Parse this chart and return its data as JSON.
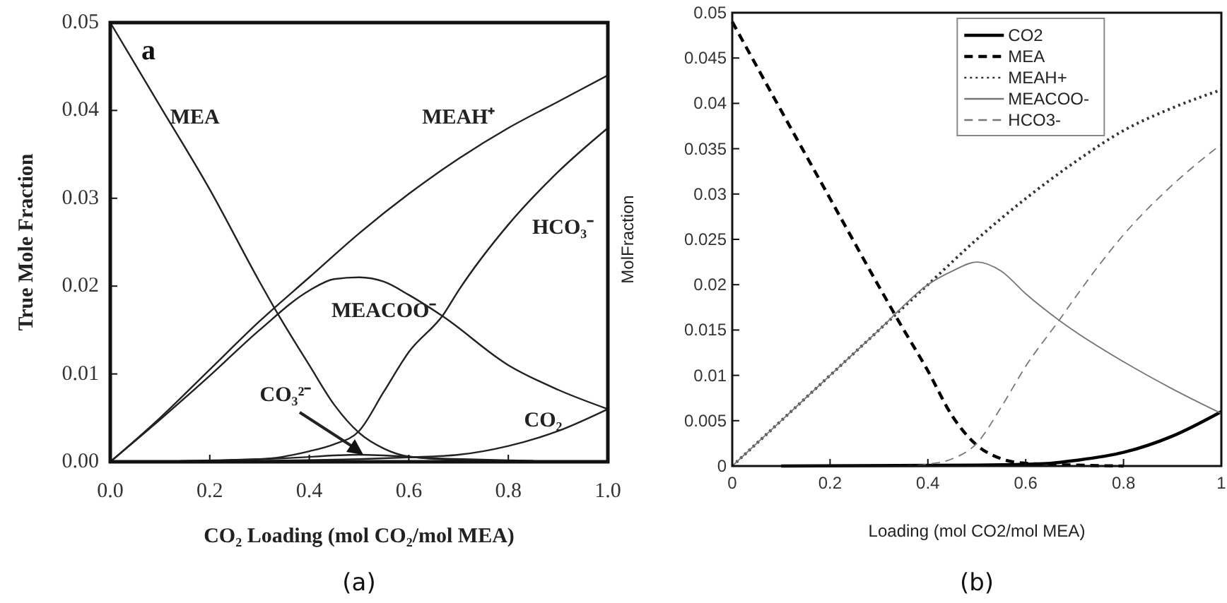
{
  "chart_data": [
    {
      "type": "line",
      "xlabel": "CO₂ Loading (mol CO₂/mol MEA)",
      "ylabel": "True Mole Fraction",
      "xlim": [
        0,
        1
      ],
      "ylim": [
        0,
        0.05
      ],
      "xticks": [
        {
          "value": 0,
          "label": "0.0"
        },
        0.2,
        0.4,
        0.6,
        0.8,
        {
          "value": 1,
          "label": "1.0"
        }
      ],
      "yticks": [
        {
          "value": 0,
          "label": "0.00"
        },
        0.01,
        0.02,
        0.03,
        0.04,
        0.05
      ],
      "series": [
        {
          "name": "MEA",
          "color": "#222222",
          "x": [
            0,
            0.1,
            0.2,
            0.3,
            0.33,
            0.4,
            0.45,
            0.5,
            0.55,
            0.6,
            0.7,
            0.8,
            1.0
          ],
          "values": [
            0.05,
            0.0405,
            0.031,
            0.0205,
            0.0175,
            0.011,
            0.0065,
            0.0033,
            0.0015,
            0.0006,
            0.0002,
            0.0001,
            0
          ]
        },
        {
          "name": "MEAH⁺",
          "color": "#222222",
          "x": [
            0,
            0.1,
            0.2,
            0.3,
            0.4,
            0.5,
            0.6,
            0.7,
            0.8,
            0.9,
            1.0
          ],
          "values": [
            0,
            0.005,
            0.0105,
            0.016,
            0.021,
            0.026,
            0.0305,
            0.0345,
            0.038,
            0.041,
            0.044
          ]
        },
        {
          "name": "MEACOO⁻",
          "color": "#222222",
          "x": [
            0,
            0.1,
            0.2,
            0.3,
            0.4,
            0.45,
            0.5,
            0.55,
            0.6,
            0.67,
            0.8,
            0.9,
            1.0
          ],
          "values": [
            0,
            0.0048,
            0.0098,
            0.015,
            0.0195,
            0.0208,
            0.021,
            0.0205,
            0.019,
            0.0165,
            0.011,
            0.0082,
            0.006
          ]
        },
        {
          "name": "HCO₃⁻",
          "color": "#222222",
          "x": [
            0,
            0.3,
            0.4,
            0.45,
            0.5,
            0.55,
            0.6,
            0.67,
            0.7,
            0.8,
            0.9,
            1.0
          ],
          "values": [
            0,
            0.0003,
            0.0012,
            0.002,
            0.0035,
            0.008,
            0.0125,
            0.0168,
            0.0195,
            0.027,
            0.033,
            0.038
          ]
        },
        {
          "name": "CO₂",
          "color": "#222222",
          "x": [
            0.1,
            0.5,
            0.6,
            0.7,
            0.8,
            0.9,
            1.0
          ],
          "values": [
            0,
            0.0003,
            0.0005,
            0.0008,
            0.0018,
            0.0035,
            0.006
          ]
        },
        {
          "name": "CO₃²⁻",
          "color": "#222222",
          "x": [
            0.2,
            0.35,
            0.5,
            0.65,
            0.85
          ],
          "values": [
            0.0001,
            0.0004,
            0.0008,
            0.0004,
            0.0001
          ]
        }
      ],
      "annotations": [
        "a",
        "(a)"
      ],
      "grid": false,
      "legend": false
    },
    {
      "type": "line",
      "xlabel": "Loading (mol CO2/mol MEA)",
      "ylabel": "MolFraction",
      "xlim": [
        0,
        1
      ],
      "ylim": [
        0,
        0.05
      ],
      "xticks": [
        0,
        0.2,
        0.4,
        0.6,
        0.8,
        1
      ],
      "yticks": [
        0,
        0.005,
        0.01,
        0.015,
        0.02,
        0.025,
        0.03,
        0.035,
        0.04,
        0.045,
        0.05
      ],
      "series": [
        {
          "name": "CO2",
          "color": "#000000",
          "line_style": "solid",
          "x": [
            0.1,
            0.5,
            0.6,
            0.65,
            0.7,
            0.8,
            0.9,
            1.0
          ],
          "values": [
            0,
            0.0001,
            0.0002,
            0.0003,
            0.0006,
            0.0015,
            0.0033,
            0.006
          ]
        },
        {
          "name": "MEA",
          "color": "#000000",
          "line_style": "dashed",
          "x": [
            0,
            0.1,
            0.2,
            0.3,
            0.34,
            0.4,
            0.45,
            0.5,
            0.55,
            0.6,
            0.7,
            0.8
          ],
          "values": [
            0.049,
            0.0392,
            0.0295,
            0.0198,
            0.016,
            0.0105,
            0.0055,
            0.0023,
            0.0008,
            0.0003,
            0.0001,
            0
          ]
        },
        {
          "name": "MEAH+",
          "color": "#333333",
          "line_style": "dotted",
          "x": [
            0,
            0.1,
            0.2,
            0.3,
            0.4,
            0.5,
            0.6,
            0.7,
            0.8,
            0.9,
            1.0
          ],
          "values": [
            0,
            0.005,
            0.01,
            0.015,
            0.02,
            0.025,
            0.0295,
            0.0335,
            0.037,
            0.0395,
            0.0415
          ]
        },
        {
          "name": "MEACOO-",
          "color": "#777777",
          "line_style": "solid",
          "x": [
            0,
            0.1,
            0.2,
            0.3,
            0.4,
            0.45,
            0.5,
            0.55,
            0.6,
            0.67,
            0.8,
            0.9,
            1.0
          ],
          "values": [
            0,
            0.005,
            0.01,
            0.015,
            0.02,
            0.0215,
            0.0225,
            0.0215,
            0.019,
            0.016,
            0.0115,
            0.0085,
            0.0058
          ]
        },
        {
          "name": "HCO3-",
          "color": "#777777",
          "line_style": "dashed",
          "x": [
            0.35,
            0.4,
            0.45,
            0.5,
            0.55,
            0.6,
            0.67,
            0.7,
            0.8,
            0.9,
            1.0
          ],
          "values": [
            0,
            0.0002,
            0.0008,
            0.0025,
            0.0065,
            0.011,
            0.0162,
            0.0185,
            0.0255,
            0.031,
            0.0355
          ]
        }
      ],
      "annotations": [
        "(b)"
      ],
      "grid": false,
      "legend": "top right"
    }
  ]
}
